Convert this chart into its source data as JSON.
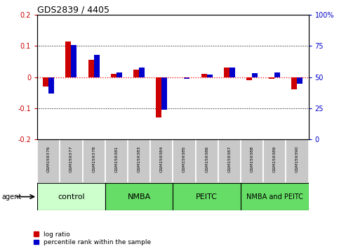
{
  "title": "GDS2839 / 4405",
  "samples": [
    "GSM159376",
    "GSM159377",
    "GSM159378",
    "GSM159381",
    "GSM159383",
    "GSM159384",
    "GSM159385",
    "GSM159386",
    "GSM159387",
    "GSM159388",
    "GSM159389",
    "GSM159390"
  ],
  "log_ratio": [
    -0.03,
    0.115,
    0.055,
    0.01,
    0.025,
    -0.13,
    0.0,
    0.01,
    0.03,
    -0.01,
    -0.005,
    -0.04
  ],
  "percentile_rank": [
    37,
    76,
    68,
    54,
    58,
    24,
    49,
    52,
    58,
    53,
    54,
    45
  ],
  "groups": [
    {
      "label": "control",
      "start": 0,
      "end": 3,
      "color": "#ccffcc"
    },
    {
      "label": "NMBA",
      "start": 3,
      "end": 6,
      "color": "#66dd66"
    },
    {
      "label": "PEITC",
      "start": 6,
      "end": 9,
      "color": "#66dd66"
    },
    {
      "label": "NMBA and PEITC",
      "start": 9,
      "end": 12,
      "color": "#66dd66"
    }
  ],
  "ylim": [
    -0.2,
    0.2
  ],
  "yticks_left": [
    -0.2,
    -0.1,
    0.0,
    0.1,
    0.2
  ],
  "yticks_right": [
    0,
    25,
    50,
    75,
    100
  ],
  "bar_width": 0.25,
  "log_color": "#cc0000",
  "pct_color": "#0000cc",
  "legend_labels": [
    "log ratio",
    "percentile rank within the sample"
  ],
  "agent_label": "agent",
  "sample_box_color": "#c8c8c8",
  "sample_box_edge": "#ffffff"
}
